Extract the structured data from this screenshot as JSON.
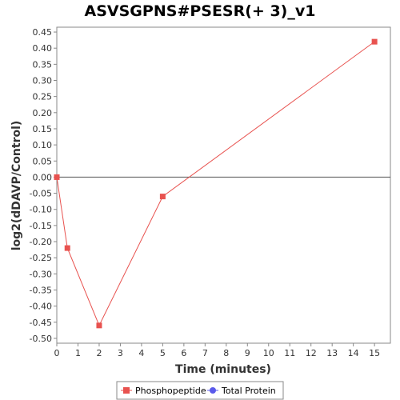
{
  "chart_data": {
    "type": "line",
    "title": "ASVSGPNS#PSESR(+ 3)_v1",
    "xlabel": "Time (minutes)",
    "ylabel": "log2(dDAVP/Control)",
    "xlim": [
      0,
      15.75
    ],
    "ylim": [
      -0.515,
      0.465
    ],
    "x_ticks": [
      0,
      1,
      2,
      3,
      4,
      5,
      6,
      7,
      8,
      9,
      10,
      11,
      12,
      13,
      14,
      15
    ],
    "y_ticks": [
      0.45,
      0.4,
      0.35,
      0.3,
      0.25,
      0.2,
      0.15,
      0.1,
      0.05,
      0.0,
      -0.05,
      -0.1,
      -0.15,
      -0.2,
      -0.25,
      -0.3,
      -0.35,
      -0.4,
      -0.45,
      -0.5
    ],
    "zero_line": true,
    "grid": false,
    "legend_position": "bottom",
    "series": [
      {
        "name": "Phosphopeptide",
        "color": "#e8524f",
        "marker": "square",
        "x": [
          0,
          0.5,
          2,
          5,
          15
        ],
        "y": [
          0.0,
          -0.22,
          -0.46,
          -0.06,
          0.42
        ]
      },
      {
        "name": "Total Protein",
        "color": "#5a5aeb",
        "marker": "circle",
        "x": [],
        "y": []
      }
    ]
  }
}
